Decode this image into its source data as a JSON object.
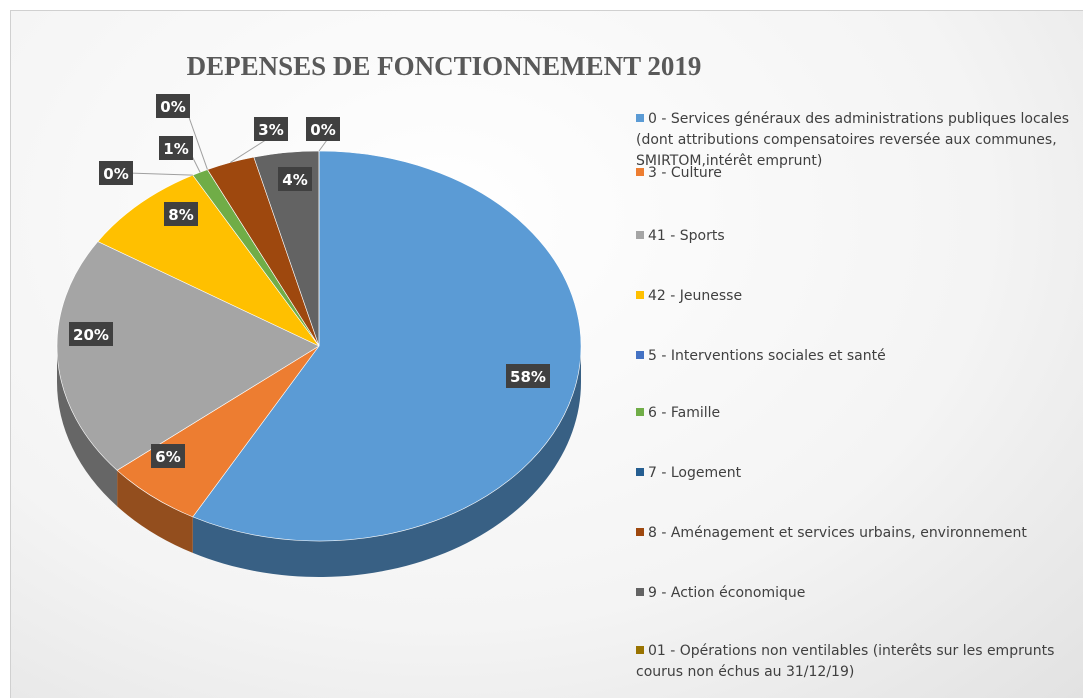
{
  "chart_data": {
    "type": "pie3d",
    "title": "DEPENSES DE FONCTIONNEMENT 2019",
    "categories": [
      "0 - Services généraux des administrations publiques locales (dont attributions compensatoires reversée aux communes, SMIRTOM,intérêt emprunt)",
      "3 - Culture",
      "41 - Sports",
      "42 - Jeunesse",
      "5 - Interventions sociales et santé",
      "6 - Famille",
      "7 - Logement",
      "8 - Aménagement et services urbains, environnement",
      "9 - Action économique",
      "01 - Opérations non ventilables (interêts sur les emprunts courus non échus au 31/12/19)"
    ],
    "values": [
      58,
      6,
      20,
      8,
      0,
      1,
      0,
      3,
      4,
      0
    ],
    "value_labels": [
      "58%",
      "6%",
      "20%",
      "8%",
      "0%",
      "1%",
      "0%",
      "3%",
      "4%",
      "0%"
    ],
    "colors": [
      "#5b9bd5",
      "#ed7d31",
      "#a5a5a5",
      "#ffc000",
      "#4472c4",
      "#70ad47",
      "#255e91",
      "#9e480e",
      "#636363",
      "#997300"
    ],
    "legend": "right"
  }
}
